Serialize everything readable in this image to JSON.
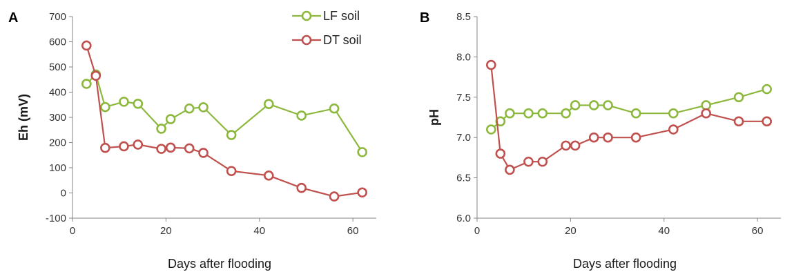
{
  "chart_data": [
    {
      "type": "line",
      "panel_label": "A",
      "xlabel": "Days after flooding",
      "ylabel": "Eh (mV)",
      "xlim": [
        0,
        65
      ],
      "ylim": [
        -100,
        700
      ],
      "xticks": [
        0,
        20,
        40,
        60
      ],
      "yticks": [
        -100,
        0,
        100,
        200,
        300,
        400,
        500,
        600,
        700
      ],
      "xtick_labels": [
        "0",
        "20",
        "40",
        "60"
      ],
      "ytick_labels": [
        "-100",
        "0",
        "100",
        "200",
        "300",
        "400",
        "500",
        "600",
        "700"
      ],
      "legend_position": "top-right",
      "series": [
        {
          "name": "LF soil",
          "color": "#8cb83d",
          "x": [
            3,
            5,
            7,
            11,
            14,
            19,
            21,
            25,
            28,
            34,
            42,
            49,
            56,
            62
          ],
          "y": [
            433,
            470,
            341,
            362,
            354,
            255,
            293,
            335,
            340,
            230,
            353,
            307,
            335,
            162
          ]
        },
        {
          "name": "DT soil",
          "color": "#c0504d",
          "x": [
            3,
            5,
            7,
            11,
            14,
            19,
            21,
            25,
            28,
            34,
            42,
            49,
            56,
            62
          ],
          "y": [
            585,
            465,
            179,
            185,
            192,
            175,
            180,
            177,
            159,
            87,
            69,
            20,
            -14,
            2
          ]
        }
      ]
    },
    {
      "type": "line",
      "panel_label": "B",
      "xlabel": "Days after flooding",
      "ylabel": "pH",
      "xlim": [
        0,
        65
      ],
      "ylim": [
        6.0,
        8.5
      ],
      "xticks": [
        0,
        20,
        40,
        60
      ],
      "yticks": [
        6.0,
        6.5,
        7.0,
        7.5,
        8.0,
        8.5
      ],
      "xtick_labels": [
        "0",
        "20",
        "40",
        "60"
      ],
      "ytick_labels": [
        "6.0",
        "6.5",
        "7.0",
        "7.5",
        "8.0",
        "8.5"
      ],
      "series": [
        {
          "name": "LF soil",
          "color": "#8cb83d",
          "x": [
            3,
            5,
            7,
            11,
            14,
            19,
            21,
            25,
            28,
            34,
            42,
            49,
            56,
            62
          ],
          "y": [
            7.1,
            7.2,
            7.3,
            7.3,
            7.3,
            7.3,
            7.4,
            7.4,
            7.4,
            7.3,
            7.3,
            7.4,
            7.5,
            7.6
          ]
        },
        {
          "name": "DT soil",
          "color": "#c0504d",
          "x": [
            3,
            5,
            7,
            11,
            14,
            19,
            21,
            25,
            28,
            34,
            42,
            49,
            56,
            62
          ],
          "y": [
            7.9,
            6.8,
            6.6,
            6.7,
            6.7,
            6.9,
            6.9,
            7.0,
            7.0,
            7.0,
            7.1,
            7.3,
            7.2,
            7.2
          ]
        }
      ]
    }
  ]
}
